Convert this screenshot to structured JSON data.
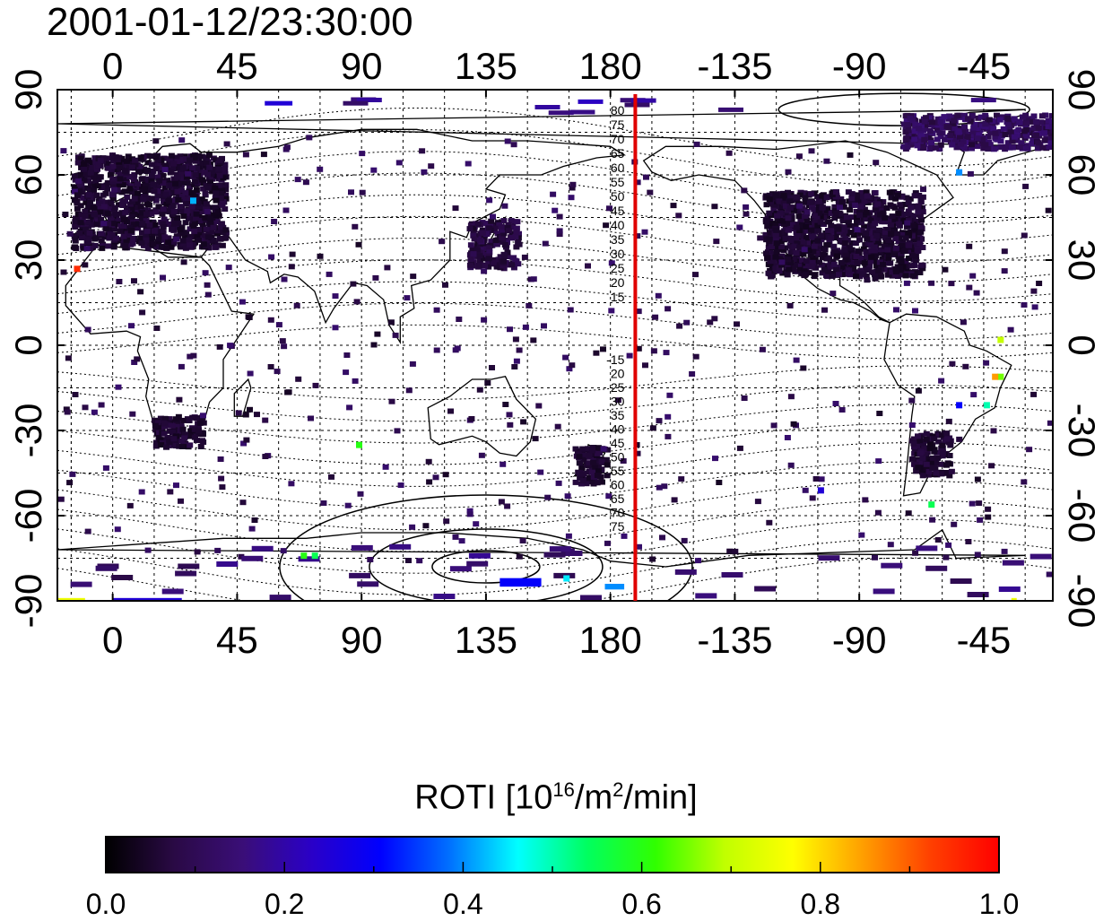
{
  "title": "2001-01-12/23:30:00",
  "map": {
    "lon_range_start": -20,
    "lon_range_span": 360,
    "lat_range": [
      -90,
      90
    ],
    "lon_tick_values": [
      0,
      45,
      90,
      135,
      180,
      225,
      270,
      315
    ],
    "lon_tick_labels": [
      "0",
      "45",
      "90",
      "135",
      "180",
      "-135",
      "-90",
      "-45"
    ],
    "lat_tick_values": [
      90,
      60,
      30,
      0,
      -30,
      -60,
      -90
    ],
    "lat_tick_labels": [
      "90",
      "60",
      "30",
      "0",
      "-30",
      "-60",
      "-90"
    ],
    "meridian_line_lon": 189,
    "meridian_line_color": "#e00000",
    "contour_labels_north": [
      "80",
      "75",
      "70",
      "65",
      "60",
      "55",
      "50",
      "45",
      "40",
      "35",
      "30",
      "25",
      "20",
      "15"
    ],
    "contour_labels_south": [
      "-15",
      "20",
      "25",
      "30",
      "35",
      "40",
      "45",
      "50",
      "55",
      "60",
      "65",
      "70",
      "75"
    ],
    "data_regions": [
      {
        "name": "europe",
        "lon": [
          -15,
          40
        ],
        "lat": [
          35,
          68
        ],
        "value": 0.05
      },
      {
        "name": "north-america",
        "lon": [
          -125,
          -68
        ],
        "lat": [
          25,
          55
        ],
        "value": 0.05
      },
      {
        "name": "japan",
        "lon": [
          128,
          146
        ],
        "lat": [
          28,
          45
        ],
        "value": 0.07
      },
      {
        "name": "southern-africa",
        "lon": [
          14,
          32
        ],
        "lat": [
          -35,
          -24
        ],
        "value": 0.05
      },
      {
        "name": "new-zealand",
        "lon": [
          166,
          178
        ],
        "lat": [
          -48,
          -35
        ],
        "value": 0.05
      },
      {
        "name": "south-america",
        "lon": [
          -72,
          -58
        ],
        "lat": [
          -45,
          -30
        ],
        "value": 0.05
      },
      {
        "name": "greenland",
        "lon": [
          -75,
          -20
        ],
        "lat": [
          70,
          82
        ],
        "value": 0.1
      }
    ],
    "hotspots": [
      {
        "lon": -14,
        "lat": 28,
        "value": 0.95
      },
      {
        "lon": -40,
        "lat": -10,
        "value": 0.65
      },
      {
        "lon": -45,
        "lat": -20,
        "value": 0.5
      },
      {
        "lon": -55,
        "lat": -20,
        "value": 0.3
      },
      {
        "lon": -65,
        "lat": -55,
        "value": 0.55
      },
      {
        "lon": -40,
        "lat": 3,
        "value": 0.7
      },
      {
        "lon": -42,
        "lat": -10,
        "value": 0.85
      },
      {
        "lon": 68,
        "lat": -73,
        "value": 0.6
      },
      {
        "lon": 72,
        "lat": -73,
        "value": 0.55
      },
      {
        "lon": 28,
        "lat": 52,
        "value": 0.42
      },
      {
        "lon": 88,
        "lat": -34,
        "value": 0.6
      },
      {
        "lon": 163,
        "lat": -81,
        "value": 0.45
      },
      {
        "lon": -105,
        "lat": -50,
        "value": 0.25
      },
      {
        "lon": -55,
        "lat": 62,
        "value": 0.4
      }
    ],
    "bands": [
      {
        "lon": [
          -20,
          -10
        ],
        "lat": [
          -90,
          -89
        ],
        "value": 0.75
      },
      {
        "lon": [
          0,
          25
        ],
        "lat": [
          -90,
          -89
        ],
        "value": 0.25
      },
      {
        "lon": [
          -35,
          -20
        ],
        "lat": [
          -90,
          -89
        ],
        "value": 0.75
      },
      {
        "lon": [
          55,
          65
        ],
        "lat": [
          85,
          86
        ],
        "value": 0.25
      },
      {
        "lon": [
          140,
          155
        ],
        "lat": [
          -85,
          -82
        ],
        "value": 0.3
      },
      {
        "lon": [
          178,
          185
        ],
        "lat": [
          -86,
          -84
        ],
        "value": 0.4
      }
    ]
  },
  "colorbar": {
    "title_main": "ROTI  [10",
    "title_sup1": "16",
    "title_mid": "/m",
    "title_sup2": "2",
    "title_end": "/min]",
    "tick_labels": [
      "0.0",
      "0.2",
      "0.4",
      "0.6",
      "0.8",
      "1.0"
    ],
    "colors": [
      "#000000",
      "#2a0a45",
      "#3a0e78",
      "#2a00c8",
      "#0000ff",
      "#0070ff",
      "#00ffff",
      "#00ff60",
      "#30ff00",
      "#c0ff00",
      "#ffff00",
      "#ffa000",
      "#ff4000",
      "#ff0000"
    ]
  }
}
